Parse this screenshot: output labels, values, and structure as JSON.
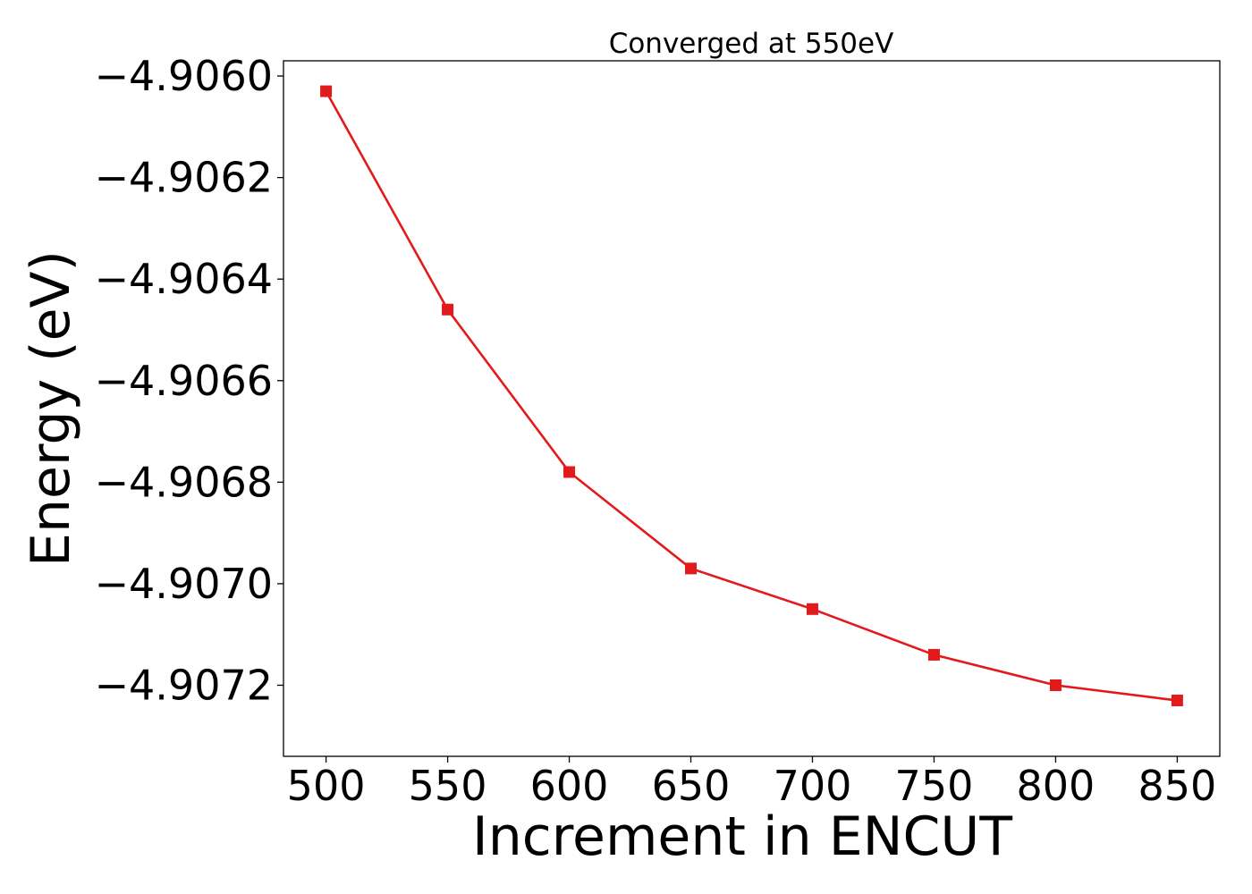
{
  "chart_data": {
    "type": "line",
    "title": "Converged at 550eV",
    "xlabel": "Increment in ENCUT",
    "ylabel": "Energy (eV)",
    "x": [
      500,
      550,
      600,
      650,
      700,
      750,
      800,
      850
    ],
    "series": [
      {
        "values": [
          -4.90603,
          -4.90646,
          -4.90678,
          -4.90697,
          -4.90705,
          -4.90714,
          -4.9072,
          -4.90723
        ],
        "color": "#e31a1c",
        "marker": "square"
      }
    ],
    "xticks": [
      500,
      550,
      600,
      650,
      700,
      750,
      800,
      850
    ],
    "xtick_labels": [
      "500",
      "550",
      "600",
      "650",
      "700",
      "750",
      "800",
      "850"
    ],
    "yticks": [
      -4.906,
      -4.9062,
      -4.9064,
      -4.9066,
      -4.9068,
      -4.907,
      -4.9072
    ],
    "ytick_labels": [
      "−4.9060",
      "−4.9062",
      "−4.9064",
      "−4.9066",
      "−4.9068",
      "−4.9070",
      "−4.9072"
    ],
    "xlim": [
      482.5,
      867.5
    ],
    "ylim": [
      -4.90734,
      -4.90597
    ],
    "grid": false,
    "legend": "none"
  }
}
